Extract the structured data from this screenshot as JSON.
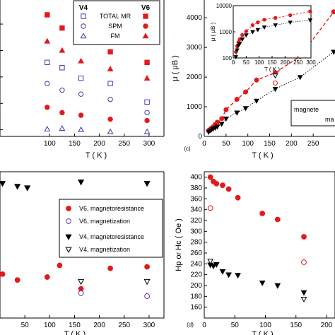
{
  "colors": {
    "red": "#e31a1c",
    "blue": "#3a3aa8",
    "black": "#000000"
  },
  "chart_data": [
    {
      "id": "a",
      "type": "scatter",
      "xlabel": "T ( K )",
      "xlim": [
        0,
        330
      ],
      "xticks": [
        100,
        150,
        200,
        250,
        300
      ],
      "ylim": [
        0,
        1
      ],
      "legend": {
        "placement": "top-right",
        "col_headers": [
          "V4",
          "V6"
        ],
        "rows": [
          "TOTAL MR",
          "SPM",
          "FM"
        ]
      },
      "series": [
        {
          "name": "TOTAL MR",
          "sample": "V4",
          "marker": "square-open",
          "color": "#3a3aa8",
          "x": [
            95,
            125,
            163,
            222,
            296
          ],
          "y": [
            0.56,
            0.52,
            0.44,
            0.4,
            0.26
          ]
        },
        {
          "name": "SPM",
          "sample": "V4",
          "marker": "circle-open",
          "color": "#3a3aa8",
          "x": [
            95,
            125,
            163,
            222,
            296
          ],
          "y": [
            0.4,
            0.35,
            0.32,
            0.28,
            0.18
          ]
        },
        {
          "name": "FM",
          "sample": "V4",
          "marker": "triangle-open",
          "color": "#3a3aa8",
          "x": [
            95,
            125,
            163,
            222,
            296
          ],
          "y": [
            0.055,
            0.06,
            0.05,
            0.035,
            0.035
          ]
        },
        {
          "name": "TOTAL MR",
          "sample": "V6",
          "marker": "square-filled",
          "color": "#e31a1c",
          "x": [
            95,
            125,
            163,
            222,
            296
          ],
          "y": [
            0.92,
            0.82,
            0.72,
            0.64,
            0.56
          ]
        },
        {
          "name": "SPM",
          "sample": "V6",
          "marker": "circle-filled",
          "color": "#e31a1c",
          "x": [
            95,
            125,
            163,
            222,
            296
          ],
          "y": [
            0.22,
            0.18,
            0.16,
            0.13,
            0.12
          ]
        },
        {
          "name": "FM",
          "sample": "V6",
          "marker": "triangle-filled",
          "color": "#e31a1c",
          "x": [
            95,
            125,
            163,
            222,
            296
          ],
          "y": [
            0.72,
            0.65,
            0.57,
            0.51,
            0.44
          ]
        }
      ]
    },
    {
      "id": "b",
      "type": "scatter",
      "panel_label": "(c)",
      "xlabel": "T ( K )",
      "ylabel": "μ ( μB )",
      "xlim": [
        0,
        300
      ],
      "xticks": [
        0,
        50,
        100,
        150,
        200,
        250
      ],
      "yticks": [
        0,
        1000,
        2000,
        3000,
        4000
      ],
      "ylim": [
        0,
        4600
      ],
      "legend_fragments": [
        "magnete",
        "ma"
      ],
      "series": [
        {
          "sample": "V6",
          "marker": "circle-filled",
          "color": "#e31a1c",
          "fit": "dashed",
          "x": [
            10,
            15,
            20,
            25,
            30,
            40,
            50,
            75,
            95,
            120,
            163,
            220,
            297
          ],
          "y": [
            200,
            260,
            320,
            400,
            480,
            600,
            900,
            1250,
            1500,
            1900,
            2150,
            2700,
            4200
          ]
        },
        {
          "sample": "V4",
          "marker": "triangle-filled",
          "color": "#000000",
          "fit": "dotted",
          "x": [
            10,
            15,
            20,
            25,
            30,
            40,
            50,
            75,
            95,
            120,
            163,
            220,
            297
          ],
          "y": [
            150,
            200,
            250,
            290,
            330,
            420,
            600,
            800,
            950,
            1200,
            1600,
            2000,
            2850
          ]
        },
        {
          "sample": "V6",
          "marker": "circle-open",
          "color": "#e31a1c",
          "x": [
            163
          ],
          "y": [
            1800
          ]
        },
        {
          "sample": "V4",
          "marker": "triangle-open",
          "color": "#000000",
          "x": [
            163
          ],
          "y": [
            2050
          ]
        }
      ],
      "inset": {
        "xlabel": "T ( K )",
        "ylabel": "μ ( μB )",
        "xlim": [
          0,
          300
        ],
        "xticks": [
          0,
          50,
          100,
          150,
          200,
          250,
          300
        ],
        "yscale": "log",
        "ylim": [
          100,
          10000
        ],
        "yticks": [
          100,
          1000,
          10000
        ],
        "series": [
          {
            "sample": "V6",
            "marker": "circle-filled",
            "color": "#e31a1c",
            "x": [
              10,
              15,
              20,
              25,
              35,
              50,
              75,
              95,
              120,
              163,
              220,
              297
            ],
            "y": [
              170,
              280,
              400,
              520,
              750,
              1050,
              1800,
              2300,
              2900,
              3400,
              4300,
              6000
            ]
          },
          {
            "sample": "V4",
            "marker": "triangle-filled",
            "color": "#000000",
            "x": [
              10,
              15,
              20,
              25,
              35,
              50,
              75,
              95,
              120,
              163,
              220,
              297
            ],
            "y": [
              110,
              200,
              300,
              350,
              520,
              750,
              1000,
              1200,
              1500,
              1800,
              2300,
              2800
            ]
          }
        ]
      }
    },
    {
      "id": "c",
      "type": "scatter",
      "xlabel": "T ( K )",
      "xlim": [
        0,
        330
      ],
      "xticks": [
        50,
        100,
        150,
        200,
        250,
        300
      ],
      "ylim": [
        0,
        1
      ],
      "legend": {
        "placement": "right",
        "entries": [
          {
            "label": "V6, magnetoresistance",
            "marker": "circle-filled",
            "color": "#e31a1c"
          },
          {
            "label": "V6, magnetization",
            "marker": "circle-open",
            "color": "#6b2fa8"
          },
          {
            "label": "V4, magnetoresistance",
            "marker": "triangle-filled",
            "color": "#000000"
          },
          {
            "label": "V4, magnetization",
            "marker": "triangle-open",
            "color": "#000000"
          }
        ]
      },
      "series": [
        {
          "name": "V4, magnetoresistance",
          "marker": "triangle-filled",
          "color": "#000000",
          "x": [
            5,
            35,
            55,
            163,
            296
          ],
          "y": [
            0.92,
            0.9,
            0.89,
            0.93,
            0.92
          ]
        },
        {
          "name": "V6, magnetoresistance",
          "marker": "circle-filled",
          "color": "#e31a1c",
          "x": [
            5,
            35,
            95,
            120,
            163,
            222,
            296
          ],
          "y": [
            0.3,
            0.26,
            0.28,
            0.36,
            0.2,
            0.34,
            0.35
          ]
        },
        {
          "name": "V6, magnetization",
          "marker": "circle-open",
          "color": "#6b2fa8",
          "x": [
            163,
            296
          ],
          "y": [
            0.17,
            0.15
          ]
        },
        {
          "name": "V4, magnetization",
          "marker": "triangle-open",
          "color": "#000000",
          "x": [
            163,
            296
          ],
          "y": [
            0.25,
            0.25
          ]
        }
      ]
    },
    {
      "id": "d",
      "type": "scatter",
      "panel_label": "(d)",
      "xlabel": "T ( K )",
      "ylabel": "Hp or Hc ( Oe )",
      "xlim": [
        0,
        200
      ],
      "xticks": [
        0,
        50,
        100,
        150,
        200
      ],
      "ylim": [
        140,
        410
      ],
      "yticks": [
        160,
        180,
        200,
        220,
        240,
        260,
        280,
        300,
        320,
        340,
        360,
        380,
        400
      ],
      "series": [
        {
          "marker": "circle-filled",
          "color": "#e31a1c",
          "x": [
            10,
            15,
            20,
            30,
            40,
            55,
            95,
            120,
            163
          ],
          "y": [
            400,
            392,
            388,
            385,
            378,
            362,
            333,
            322,
            290
          ]
        },
        {
          "marker": "triangle-filled",
          "color": "#000000",
          "x": [
            10,
            15,
            20,
            30,
            40,
            55,
            95,
            120,
            163
          ],
          "y": [
            238,
            236,
            239,
            226,
            220,
            219,
            205,
            200,
            187
          ]
        },
        {
          "marker": "circle-open",
          "color": "#e31a1c",
          "x": [
            10,
            163
          ],
          "y": [
            343,
            243
          ]
        },
        {
          "marker": "triangle-open",
          "color": "#000000",
          "x": [
            10,
            163
          ],
          "y": [
            245,
            175
          ]
        }
      ]
    }
  ]
}
